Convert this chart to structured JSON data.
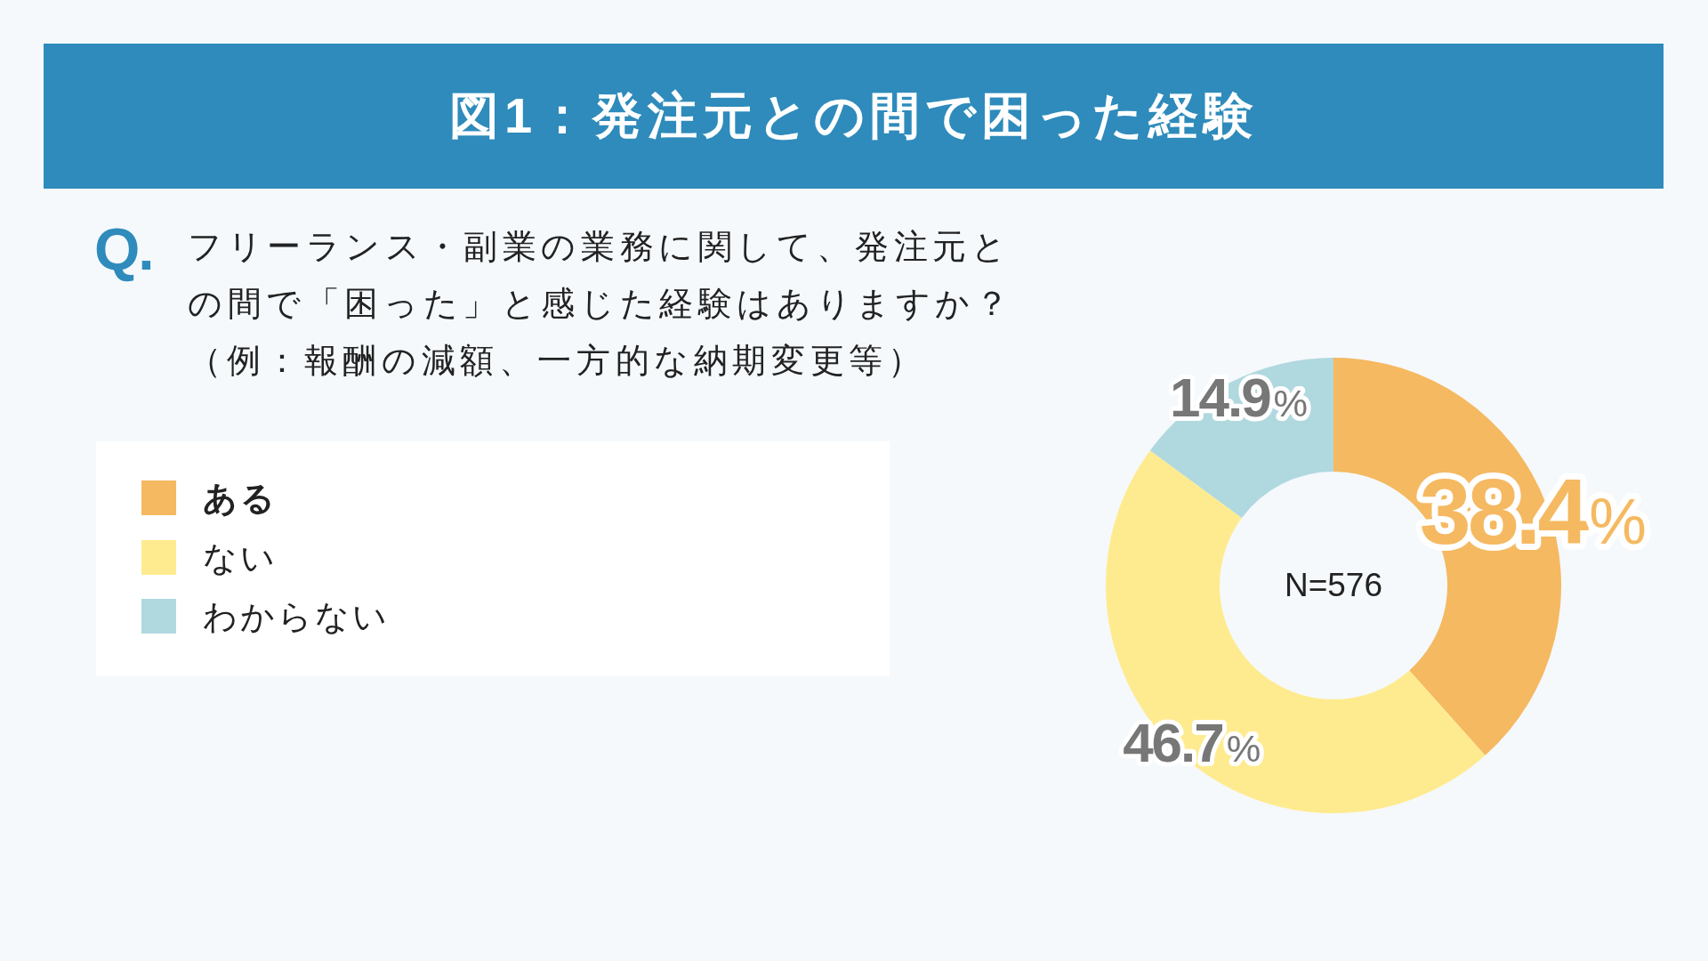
{
  "chart_data": {
    "type": "donut",
    "title": "図1：発注元との間で困った経験",
    "subtitle": "フリーランス・副業の業務に関して、発注元との間で「困った」と感じた経験はありますか？（例：報酬の減額、一方的な納期変更等）",
    "categories": [
      "ある",
      "ない",
      "わからない"
    ],
    "values": [
      38.4,
      46.7,
      14.9
    ],
    "colors": [
      "#f5b961",
      "#ffeb8f",
      "#b0d8df"
    ],
    "value_labels": [
      "38.4%",
      "46.7%",
      "14.9%"
    ],
    "legend": "left",
    "annotations": [
      "Q.",
      "N=576"
    ]
  }
}
